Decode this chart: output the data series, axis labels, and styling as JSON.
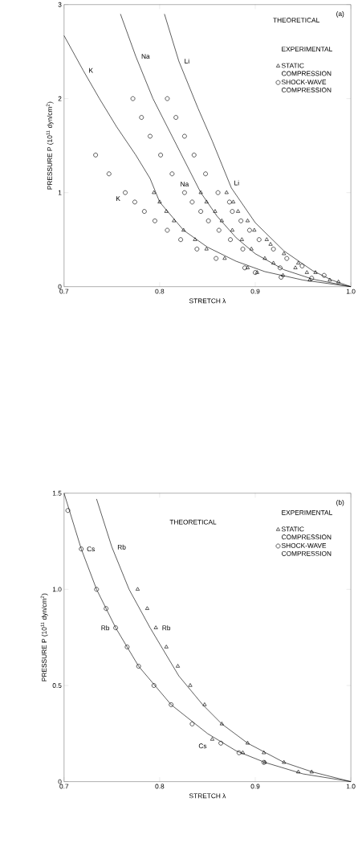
{
  "chart_data": [
    {
      "type": "line",
      "xlabel": "STRETCH λ",
      "ylabel": "PRESSURE P (10$^{11}$ dyn/cm$^{2}$)",
      "xlim": [
        0.7,
        1.0
      ],
      "ylim": [
        0,
        3
      ],
      "xticks": [
        0.7,
        0.8,
        0.9,
        {
          "value": 1.0,
          "label": "1.0"
        }
      ],
      "yticks": [
        0,
        1,
        2,
        3
      ],
      "legend": "top right",
      "legend_title": "EXPERIMENTAL",
      "annotations": [
        "(a)",
        "THEORETICAL",
        {
          "text": "K",
          "x": 0.764,
          "y": 1.0
        },
        {
          "text": "Na",
          "x": 0.826,
          "y": 1.0
        },
        {
          "text": "Li",
          "x": 0.87,
          "y": 1.0
        }
      ],
      "series": [
        {
          "name": "K",
          "color": "#000000",
          "marker": "none",
          "x": [
            0.7,
            0.72,
            0.737,
            0.755,
            0.775,
            0.79,
            0.8,
            0.825,
            0.85,
            0.88,
            0.91,
            0.95,
            1.0
          ],
          "values": [
            2.67,
            2.3,
            2.0,
            1.7,
            1.4,
            1.15,
            0.9,
            0.6,
            0.42,
            0.27,
            0.16,
            0.07,
            0
          ]
        },
        {
          "name": "Na",
          "color": "#000000",
          "marker": "none",
          "x": [
            0.759,
            0.775,
            0.793,
            0.808,
            0.823,
            0.843,
            0.86,
            0.88,
            0.9,
            0.93,
            0.96,
            1.0
          ],
          "values": [
            2.9,
            2.45,
            2.0,
            1.7,
            1.4,
            1.0,
            0.75,
            0.52,
            0.35,
            0.18,
            0.08,
            0
          ]
        },
        {
          "name": "Li",
          "color": "#000000",
          "marker": "none",
          "x": [
            0.805,
            0.82,
            0.84,
            0.855,
            0.875,
            0.9,
            0.93,
            0.96,
            0.98,
            1.0
          ],
          "values": [
            2.9,
            2.4,
            1.9,
            1.55,
            1.05,
            0.68,
            0.38,
            0.17,
            0.07,
            0
          ]
        },
        {
          "name": "STATIC COMPRESSION",
          "type": "scatter",
          "color": "#000000",
          "marker": "triangle",
          "x": [
            0.794,
            0.8,
            0.807,
            0.815,
            0.825,
            0.837,
            0.849,
            0.843,
            0.849,
            0.87,
            0.858,
            0.877,
            0.882,
            0.865,
            0.892,
            0.876,
            0.899,
            0.886,
            0.912,
            0.916,
            0.896,
            0.868,
            0.91,
            0.93,
            0.892,
            0.919,
            0.902,
            0.945,
            0.942,
            0.929,
            0.954,
            0.963,
            0.957,
            0.978,
            0.987
          ],
          "values": [
            1.0,
            0.9,
            0.8,
            0.7,
            0.6,
            0.5,
            0.4,
            1.0,
            0.9,
            1.0,
            0.8,
            0.9,
            0.8,
            0.7,
            0.7,
            0.6,
            0.6,
            0.5,
            0.5,
            0.45,
            0.4,
            0.3,
            0.3,
            0.35,
            0.2,
            0.25,
            0.15,
            0.25,
            0.2,
            0.12,
            0.15,
            0.15,
            0.07,
            0.07,
            0.05
          ]
        },
        {
          "name": "SHOCK-WAVE COMPRESSION",
          "type": "scatter",
          "color": "#000000",
          "marker": "circle",
          "x": [
            0.733,
            0.747,
            0.764,
            0.774,
            0.784,
            0.795,
            0.808,
            0.822,
            0.839,
            0.772,
            0.781,
            0.79,
            0.801,
            0.813,
            0.808,
            0.817,
            0.826,
            0.836,
            0.848,
            0.826,
            0.834,
            0.843,
            0.851,
            0.861,
            0.873,
            0.876,
            0.885,
            0.862,
            0.894,
            0.874,
            0.904,
            0.887,
            0.919,
            0.859,
            0.933,
            0.889,
            0.926,
            0.9,
            0.949,
            0.927,
            0.972,
            0.959
          ],
          "values": [
            1.4,
            1.2,
            1.0,
            0.9,
            0.8,
            0.7,
            0.6,
            0.5,
            0.4,
            2.0,
            1.8,
            1.6,
            1.4,
            1.2,
            2.0,
            1.8,
            1.6,
            1.4,
            1.2,
            1.0,
            0.9,
            0.8,
            0.7,
            1.0,
            0.9,
            0.8,
            0.7,
            0.6,
            0.6,
            0.5,
            0.5,
            0.4,
            0.4,
            0.3,
            0.3,
            0.2,
            0.2,
            0.15,
            0.22,
            0.1,
            0.12,
            0.09
          ]
        }
      ]
    },
    {
      "type": "line",
      "xlabel": "STRETCH λ",
      "ylabel": "PRESSURE P (10$^{11}$ dyn/cm$^{2}$)",
      "xlim": [
        0.7,
        1.0
      ],
      "ylim": [
        0,
        1.5
      ],
      "xticks": [
        0.7,
        0.8,
        0.9,
        {
          "value": 1.0,
          "label": "1.0"
        }
      ],
      "yticks": [
        0,
        0.5,
        {
          "value": 1.0,
          "label": "1.0"
        },
        1.5
      ],
      "legend": "top right",
      "legend_title": "EXPERIMENTAL",
      "annotations": [
        "(b)",
        "THEORETICAL",
        {
          "text": "Rb",
          "x": 0.796,
          "y": 0.8
        },
        {
          "text": "Rb",
          "x": 0.754,
          "y": 0.8
        },
        {
          "text": "Cs",
          "x": 0.855,
          "y": 0.22
        }
      ],
      "series": [
        {
          "name": "Rb",
          "color": "#000000",
          "marker": "none",
          "x": [
            0.734,
            0.75,
            0.768,
            0.79,
            0.82,
            0.845,
            0.865,
            0.892,
            0.93,
            0.96,
            1.0
          ],
          "values": [
            1.47,
            1.22,
            1.0,
            0.8,
            0.55,
            0.4,
            0.3,
            0.2,
            0.1,
            0.05,
            0
          ]
        },
        {
          "name": "Cs",
          "color": "#000000",
          "marker": "none",
          "x": [
            0.7,
            0.718,
            0.734,
            0.754,
            0.778,
            0.812,
            0.85,
            0.88,
            0.91,
            0.95,
            1.0
          ],
          "values": [
            1.5,
            1.21,
            1.0,
            0.8,
            0.6,
            0.4,
            0.25,
            0.16,
            0.1,
            0.04,
            0
          ]
        },
        {
          "name": "STATIC COMPRESSION",
          "type": "scatter",
          "color": "#000000",
          "marker": "triangle",
          "x": [
            0.777,
            0.787,
            0.796,
            0.807,
            0.819,
            0.832,
            0.847,
            0.865,
            0.892,
            0.909,
            0.93,
            0.945,
            0.959,
            0.855,
            0.887,
            0.91
          ],
          "values": [
            1.0,
            0.9,
            0.8,
            0.7,
            0.6,
            0.5,
            0.4,
            0.3,
            0.2,
            0.15,
            0.1,
            0.05,
            0.05,
            0.22,
            0.15,
            0.1
          ]
        },
        {
          "name": "SHOCK-WAVE COMPRESSION",
          "type": "scatter",
          "color": "#000000",
          "marker": "circle",
          "x": [
            0.704,
            0.718,
            0.734,
            0.744,
            0.754,
            0.766,
            0.778,
            0.794,
            0.812,
            0.834,
            0.864,
            0.883,
            0.909
          ],
          "values": [
            1.41,
            1.21,
            1.0,
            0.9,
            0.8,
            0.7,
            0.6,
            0.5,
            0.4,
            0.3,
            0.2,
            0.15,
            0.1
          ]
        }
      ]
    }
  ]
}
